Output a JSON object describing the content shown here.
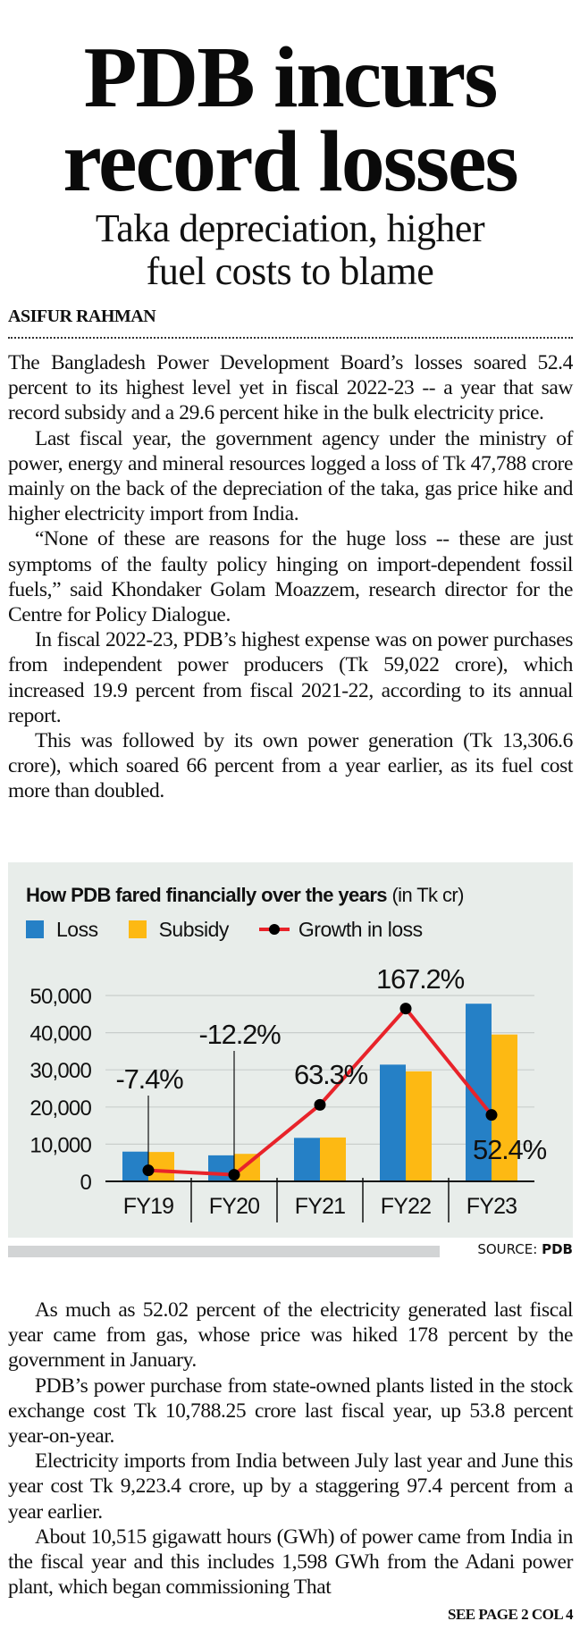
{
  "article": {
    "headline_line1": "PDB incurs",
    "headline_line2": "record losses",
    "subhead_line1": "Taka depreciation, higher",
    "subhead_line2": "fuel costs to blame",
    "byline": "ASIFUR RAHMAN",
    "paragraphs_top": [
      "The Bangladesh Power Development Board’s losses soared 52.4 percent to its highest level yet in fiscal 2022-23 -- a year that saw record subsidy and a 29.6 percent hike in the bulk electricity price.",
      "Last fiscal year, the government agency under the ministry of power, energy and mineral resources logged a loss of Tk 47,788 crore mainly on the back of the depreciation of the taka, gas price hike and higher electricity import from India.",
      "“None of these are reasons for the huge loss -- these are just symptoms of the faulty policy hinging on import-dependent fossil fuels,” said Khondaker Golam Moazzem, research director for the Centre for Policy Dialogue.",
      "In fiscal 2022-23, PDB’s highest expense was on power purchases from independent power producers (Tk 59,022 crore), which increased 19.9 percent from fiscal 2021-22, according to its annual report.",
      "This was followed by its own power generation (Tk 13,306.6 crore), which soared 66 percent from a year earlier, as its fuel cost more than doubled."
    ],
    "paragraphs_bottom": [
      "As much as 52.02 percent of the electricity generated last fiscal year came from gas, whose price was hiked 178 percent by the government in January.",
      "PDB’s power purchase from state-owned plants listed in the stock exchange cost Tk 10,788.25 crore last fiscal year, up 53.8 percent year-on-year.",
      "Electricity imports from India between July last year and June this year cost Tk 9,223.4 crore, up by a staggering 97.4 percent from a year earlier.",
      "About 10,515 gigawatt hours (GWh) of power came from India in the fiscal year and this includes 1,598 GWh from the Adani power plant, which began commissioning That"
    ],
    "continuation": "SEE PAGE 2 COL 4"
  },
  "chart_data": {
    "type": "bar",
    "title": "How PDB fared financially over the years",
    "title_unit": "(in Tk cr)",
    "categories": [
      "FY19",
      "FY20",
      "FY21",
      "FY22",
      "FY23"
    ],
    "series": [
      {
        "name": "Loss",
        "values": [
          8000,
          7000,
          11700,
          31400,
          47788
        ],
        "color": "#2580c6"
      },
      {
        "name": "Subsidy",
        "values": [
          7900,
          7400,
          11800,
          29600,
          39500
        ],
        "color": "#fdb913"
      }
    ],
    "line_series": {
      "name": "Growth in loss",
      "values": [
        -7.4,
        -12.2,
        63.3,
        167.2,
        52.4
      ],
      "labels": [
        "-7.4%",
        "-12.2%",
        "63.3%",
        "167.2%",
        "52.4%"
      ],
      "color": "#e8232a",
      "marker_color": "#000000"
    },
    "yticks": [
      0,
      10000,
      20000,
      30000,
      40000,
      50000
    ],
    "ytick_labels": [
      "0",
      "10,000",
      "20,000",
      "30,000",
      "40,000",
      "50,000"
    ],
    "ylim": [
      0,
      50000
    ],
    "grid": true,
    "legend": "top-left",
    "source_label": "SOURCE:",
    "source_value": "PDB"
  }
}
